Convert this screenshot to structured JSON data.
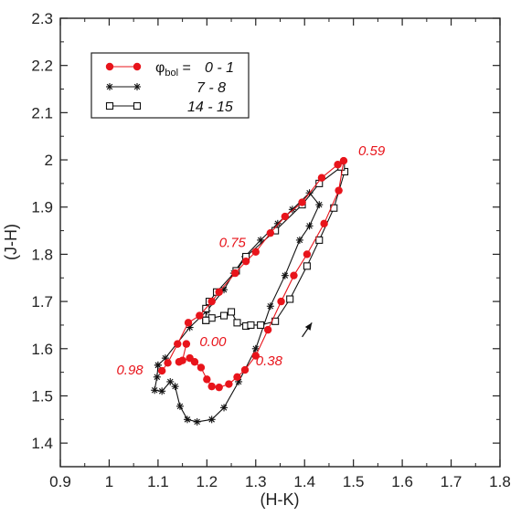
{
  "chart_data": {
    "type": "line",
    "xlabel": "(H-K)",
    "ylabel": "(J-H)",
    "xlim": [
      0.9,
      1.8
    ],
    "ylim": [
      1.35,
      2.3
    ],
    "xticks": [
      "0.9",
      "1",
      "1.1",
      "1.2",
      "1.3",
      "1.4",
      "1.5",
      "1.6",
      "1.7",
      "1.8"
    ],
    "yticks": [
      "1.4",
      "1.5",
      "1.6",
      "1.7",
      "1.8",
      "1.9",
      "2",
      "2.1",
      "2.2",
      "2.3"
    ],
    "legend": {
      "position": "top-left",
      "prefix_symbol": "φ",
      "prefix_sub": "bol",
      "prefix_eq": " = ",
      "entries": [
        "0 - 1",
        "7 - 8",
        "14 - 15"
      ]
    },
    "series": [
      {
        "name": "0 - 1",
        "color": "#e8141b",
        "marker": "filled-circle",
        "points": [
          [
            1.158,
            1.61
          ],
          [
            1.15,
            1.575
          ],
          [
            1.143,
            1.572
          ],
          [
            1.165,
            1.58
          ],
          [
            1.175,
            1.572
          ],
          [
            1.188,
            1.56
          ],
          [
            1.2,
            1.535
          ],
          [
            1.21,
            1.52
          ],
          [
            1.225,
            1.518
          ],
          [
            1.245,
            1.525
          ],
          [
            1.262,
            1.54
          ],
          [
            1.278,
            1.555
          ],
          [
            1.3,
            1.585
          ],
          [
            1.325,
            1.64
          ],
          [
            1.352,
            1.7
          ],
          [
            1.378,
            1.755
          ],
          [
            1.405,
            1.8
          ],
          [
            1.44,
            1.865
          ],
          [
            1.47,
            1.935
          ],
          [
            1.48,
            1.998
          ],
          [
            1.468,
            1.99
          ],
          [
            1.435,
            1.962
          ],
          [
            1.395,
            1.91
          ],
          [
            1.36,
            1.88
          ],
          [
            1.33,
            1.845
          ],
          [
            1.3,
            1.805
          ],
          [
            1.28,
            1.785
          ],
          [
            1.258,
            1.76
          ],
          [
            1.225,
            1.72
          ],
          [
            1.21,
            1.7
          ],
          [
            1.185,
            1.67
          ],
          [
            1.162,
            1.655
          ],
          [
            1.14,
            1.61
          ],
          [
            1.12,
            1.57
          ],
          [
            1.108,
            1.553
          ]
        ]
      },
      {
        "name": "7 - 8",
        "color": "#111111",
        "marker": "asterisk",
        "points": [
          [
            1.1,
            1.565
          ],
          [
            1.115,
            1.58
          ],
          [
            1.165,
            1.645
          ],
          [
            1.2,
            1.68
          ],
          [
            1.235,
            1.725
          ],
          [
            1.255,
            1.76
          ],
          [
            1.278,
            1.795
          ],
          [
            1.31,
            1.83
          ],
          [
            1.345,
            1.865
          ],
          [
            1.375,
            1.895
          ],
          [
            1.41,
            1.93
          ],
          [
            1.43,
            1.905
          ],
          [
            1.41,
            1.86
          ],
          [
            1.39,
            1.83
          ],
          [
            1.36,
            1.755
          ],
          [
            1.33,
            1.69
          ],
          [
            1.3,
            1.6
          ],
          [
            1.265,
            1.53
          ],
          [
            1.235,
            1.475
          ],
          [
            1.21,
            1.45
          ],
          [
            1.18,
            1.445
          ],
          [
            1.16,
            1.45
          ],
          [
            1.145,
            1.478
          ],
          [
            1.135,
            1.52
          ],
          [
            1.125,
            1.53
          ],
          [
            1.108,
            1.51
          ],
          [
            1.093,
            1.512
          ],
          [
            1.098,
            1.54
          ],
          [
            1.1,
            1.565
          ]
        ]
      },
      {
        "name": "14 - 15",
        "color": "#111111",
        "marker": "open-square",
        "points": [
          [
            1.198,
            1.66
          ],
          [
            1.21,
            1.665
          ],
          [
            1.235,
            1.67
          ],
          [
            1.25,
            1.678
          ],
          [
            1.262,
            1.655
          ],
          [
            1.28,
            1.648
          ],
          [
            1.29,
            1.65
          ],
          [
            1.31,
            1.65
          ],
          [
            1.34,
            1.658
          ],
          [
            1.37,
            1.705
          ],
          [
            1.405,
            1.775
          ],
          [
            1.43,
            1.83
          ],
          [
            1.46,
            1.898
          ],
          [
            1.482,
            1.975
          ],
          [
            1.475,
            1.985
          ],
          [
            1.43,
            1.95
          ],
          [
            1.395,
            1.905
          ],
          [
            1.34,
            1.85
          ],
          [
            1.28,
            1.795
          ],
          [
            1.26,
            1.765
          ],
          [
            1.22,
            1.72
          ],
          [
            1.205,
            1.7
          ],
          [
            1.198,
            1.685
          ],
          [
            1.198,
            1.66
          ]
        ]
      }
    ],
    "annotations": [
      {
        "text": "0.59",
        "x": 1.51,
        "y": 2.01
      },
      {
        "text": "0.75",
        "x": 1.225,
        "y": 1.815
      },
      {
        "text": "0.00",
        "x": 1.185,
        "y": 1.605
      },
      {
        "text": "0.98",
        "x": 1.015,
        "y": 1.545
      },
      {
        "text": "0.38",
        "x": 1.3,
        "y": 1.565
      }
    ],
    "arrow": {
      "from": [
        1.395,
        1.625
      ],
      "to": [
        1.415,
        1.655
      ]
    }
  }
}
